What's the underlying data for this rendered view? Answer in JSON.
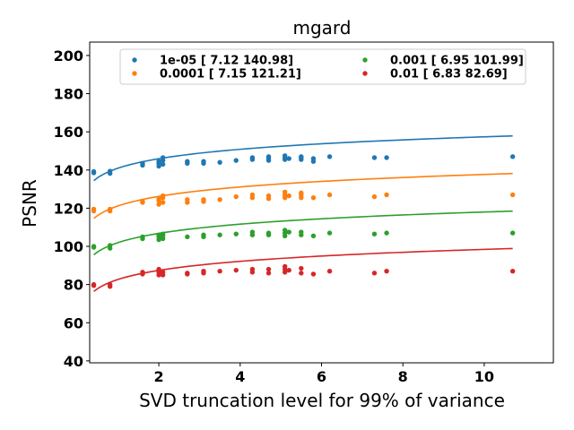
{
  "chart_data": {
    "type": "scatter",
    "title": "mgard",
    "xlabel": "SVD truncation level for 99% of variance",
    "ylabel": "PSNR",
    "xlim": [
      0.3,
      11.7
    ],
    "ylim": [
      39,
      207
    ],
    "xticks": [
      2,
      4,
      6,
      8,
      10
    ],
    "yticks": [
      40,
      60,
      80,
      100,
      120,
      140,
      160,
      180,
      200
    ],
    "grid": false,
    "legend_position": "top-center, two columns",
    "series": [
      {
        "name": "1e-05 [  7.12 140.98]",
        "color": "#1f77b4",
        "fit": {
          "a": 7.12,
          "b": 140.98
        },
        "points": [
          [
            0.4,
            138.5
          ],
          [
            0.4,
            139.2
          ],
          [
            0.8,
            138.2
          ],
          [
            0.8,
            139.4
          ],
          [
            1.6,
            142.5
          ],
          [
            1.6,
            143.5
          ],
          [
            2.0,
            142.0
          ],
          [
            2.0,
            143.5
          ],
          [
            2.0,
            144.5
          ],
          [
            2.1,
            143.0
          ],
          [
            2.1,
            145.0
          ],
          [
            2.1,
            146.5
          ],
          [
            2.7,
            143.5
          ],
          [
            2.7,
            144.5
          ],
          [
            3.1,
            143.5
          ],
          [
            3.1,
            144.5
          ],
          [
            3.5,
            144.0
          ],
          [
            3.9,
            145.0
          ],
          [
            4.3,
            145.5
          ],
          [
            4.3,
            146.5
          ],
          [
            4.7,
            145.0
          ],
          [
            4.7,
            146.0
          ],
          [
            4.7,
            147.0
          ],
          [
            5.1,
            145.5
          ],
          [
            5.1,
            146.5
          ],
          [
            5.1,
            147.5
          ],
          [
            5.2,
            146.0
          ],
          [
            5.5,
            145.5
          ],
          [
            5.5,
            146.5
          ],
          [
            5.5,
            147.0
          ],
          [
            5.8,
            144.5
          ],
          [
            5.8,
            146.0
          ],
          [
            6.2,
            147.0
          ],
          [
            7.3,
            146.5
          ],
          [
            7.6,
            146.5
          ],
          [
            10.7,
            147.0
          ]
        ]
      },
      {
        "name": "0.0001 [  7.15 121.21]",
        "color": "#ff7f0e",
        "fit": {
          "a": 7.15,
          "b": 121.21
        },
        "points": [
          [
            0.4,
            118.5
          ],
          [
            0.4,
            119.5
          ],
          [
            0.8,
            118.5
          ],
          [
            0.8,
            119.5
          ],
          [
            1.6,
            123.0
          ],
          [
            1.6,
            123.5
          ],
          [
            2.0,
            122.0
          ],
          [
            2.0,
            124.0
          ],
          [
            2.0,
            125.0
          ],
          [
            2.1,
            123.0
          ],
          [
            2.1,
            125.5
          ],
          [
            2.1,
            126.5
          ],
          [
            2.7,
            123.0
          ],
          [
            2.7,
            124.5
          ],
          [
            3.1,
            123.5
          ],
          [
            3.1,
            124.5
          ],
          [
            3.5,
            124.5
          ],
          [
            3.9,
            126.0
          ],
          [
            4.3,
            125.5
          ],
          [
            4.3,
            127.0
          ],
          [
            4.7,
            125.0
          ],
          [
            4.7,
            126.5
          ],
          [
            5.1,
            125.5
          ],
          [
            5.1,
            127.0
          ],
          [
            5.1,
            128.5
          ],
          [
            5.2,
            126.5
          ],
          [
            5.5,
            125.5
          ],
          [
            5.5,
            127.0
          ],
          [
            5.5,
            128.0
          ],
          [
            5.8,
            125.5
          ],
          [
            6.2,
            127.0
          ],
          [
            7.3,
            126.0
          ],
          [
            7.6,
            127.0
          ],
          [
            10.7,
            127.0
          ]
        ]
      },
      {
        "name": "0.001 [  6.95 101.99]",
        "color": "#2ca02c",
        "fit": {
          "a": 6.95,
          "b": 101.99
        },
        "points": [
          [
            0.4,
            99.5
          ],
          [
            0.4,
            100.0
          ],
          [
            0.8,
            99.0
          ],
          [
            0.8,
            100.5
          ],
          [
            1.6,
            104.0
          ],
          [
            1.6,
            105.0
          ],
          [
            2.0,
            103.5
          ],
          [
            2.0,
            105.0
          ],
          [
            2.0,
            106.0
          ],
          [
            2.1,
            104.0
          ],
          [
            2.1,
            105.5
          ],
          [
            2.1,
            106.5
          ],
          [
            2.7,
            105.0
          ],
          [
            3.1,
            105.0
          ],
          [
            3.1,
            106.0
          ],
          [
            3.5,
            106.0
          ],
          [
            3.9,
            106.5
          ],
          [
            4.3,
            106.0
          ],
          [
            4.3,
            107.5
          ],
          [
            4.7,
            106.0
          ],
          [
            4.7,
            107.0
          ],
          [
            5.1,
            105.5
          ],
          [
            5.1,
            107.0
          ],
          [
            5.1,
            108.5
          ],
          [
            5.2,
            107.5
          ],
          [
            5.5,
            106.0
          ],
          [
            5.5,
            107.5
          ],
          [
            5.8,
            105.5
          ],
          [
            6.2,
            107.0
          ],
          [
            7.3,
            106.5
          ],
          [
            7.6,
            107.0
          ],
          [
            10.7,
            107.0
          ]
        ]
      },
      {
        "name": "0.01 [ 6.83 82.69]",
        "color": "#d62728",
        "fit": {
          "a": 6.83,
          "b": 82.69
        },
        "points": [
          [
            0.4,
            79.5
          ],
          [
            0.4,
            80.0
          ],
          [
            0.8,
            79.0
          ],
          [
            0.8,
            80.0
          ],
          [
            1.6,
            85.5
          ],
          [
            1.6,
            86.5
          ],
          [
            2.0,
            85.0
          ],
          [
            2.0,
            86.5
          ],
          [
            2.0,
            88.0
          ],
          [
            2.1,
            85.0
          ],
          [
            2.1,
            86.5
          ],
          [
            2.7,
            85.5
          ],
          [
            2.7,
            86.0
          ],
          [
            3.1,
            86.0
          ],
          [
            3.1,
            87.0
          ],
          [
            3.5,
            87.0
          ],
          [
            3.9,
            87.5
          ],
          [
            4.3,
            86.5
          ],
          [
            4.3,
            88.0
          ],
          [
            4.7,
            86.0
          ],
          [
            4.7,
            88.0
          ],
          [
            5.1,
            86.5
          ],
          [
            5.1,
            88.0
          ],
          [
            5.1,
            89.5
          ],
          [
            5.2,
            87.5
          ],
          [
            5.5,
            86.0
          ],
          [
            5.5,
            88.5
          ],
          [
            5.8,
            85.5
          ],
          [
            6.2,
            87.0
          ],
          [
            7.3,
            86.0
          ],
          [
            7.6,
            87.0
          ],
          [
            10.7,
            87.0
          ]
        ]
      }
    ]
  }
}
